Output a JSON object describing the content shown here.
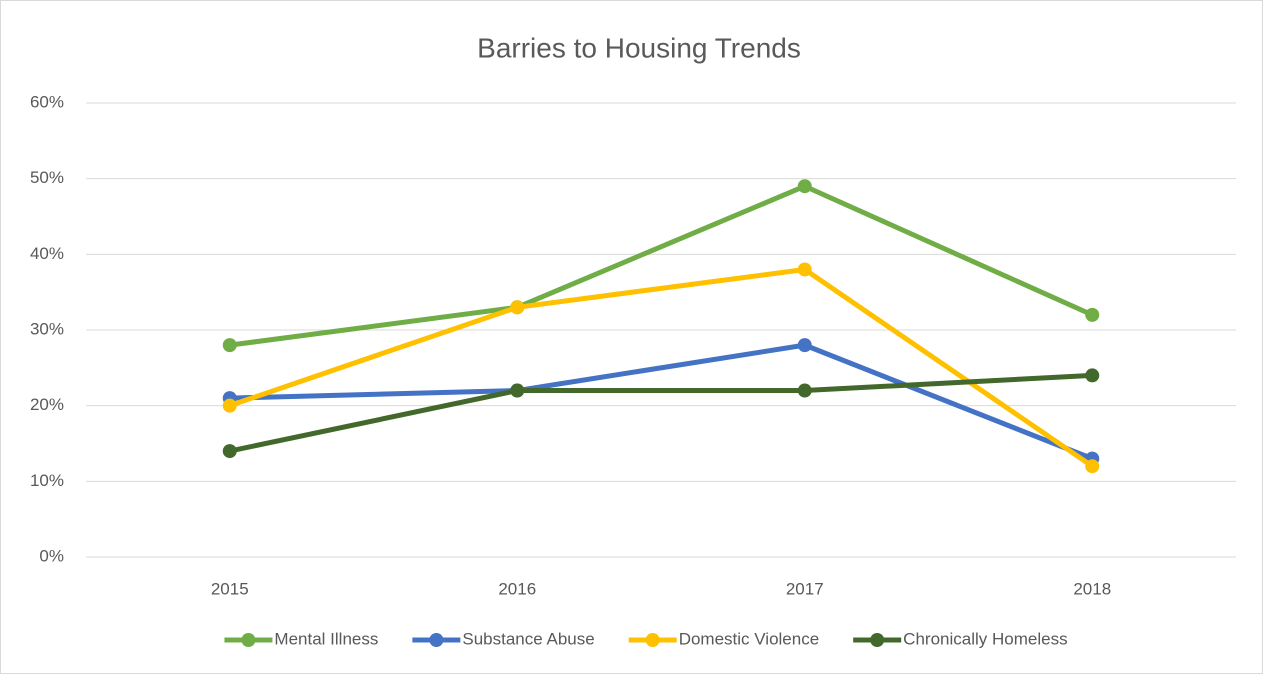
{
  "chart_data": {
    "type": "line",
    "title": "Barries to Housing Trends",
    "categories": [
      "2015",
      "2016",
      "2017",
      "2018"
    ],
    "series": [
      {
        "name": "Mental Illness",
        "color": "#70ad47",
        "values": [
          28,
          33,
          49,
          32
        ]
      },
      {
        "name": "Substance Abuse",
        "color": "#4472c4",
        "values": [
          21,
          22,
          28,
          13
        ]
      },
      {
        "name": "Domestic Violence",
        "color": "#ffc000",
        "values": [
          20,
          33,
          38,
          12
        ]
      },
      {
        "name": "Chronically Homeless",
        "color": "#43682b",
        "values": [
          14,
          22,
          22,
          24
        ]
      }
    ],
    "ylim": [
      0,
      60
    ],
    "yticks": [
      {
        "value": 0,
        "label": "0%"
      },
      {
        "value": 10,
        "label": "10%"
      },
      {
        "value": 20,
        "label": "20%"
      },
      {
        "value": 30,
        "label": "30%"
      },
      {
        "value": 40,
        "label": "40%"
      },
      {
        "value": 50,
        "label": "50%"
      },
      {
        "value": 60,
        "label": "60%"
      }
    ],
    "grid": true,
    "legend": "bottom"
  }
}
